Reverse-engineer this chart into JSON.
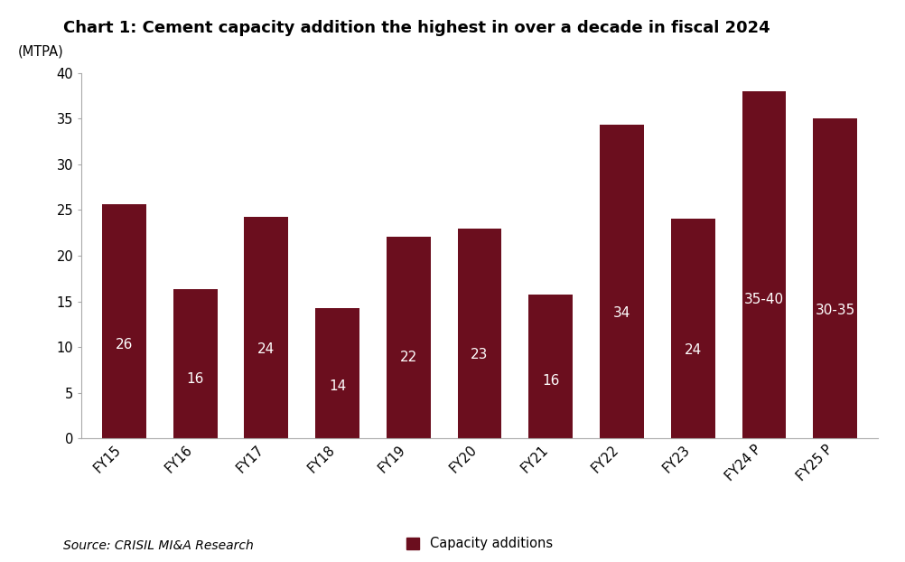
{
  "title": "Chart 1: Cement capacity addition the highest in over a decade in fiscal 2024",
  "ylabel_text": "(MTPA)",
  "categories": [
    "FY15",
    "FY16",
    "FY17",
    "FY18",
    "FY19",
    "FY20",
    "FY21",
    "FY22",
    "FY23",
    "FY24 P",
    "FY25 P"
  ],
  "values": [
    25.6,
    16.3,
    24.3,
    14.3,
    22.1,
    23.0,
    15.7,
    34.3,
    24.1,
    38.0,
    35.0
  ],
  "bar_labels": [
    "26",
    "16",
    "24",
    "14",
    "22",
    "23",
    "16",
    "34",
    "24",
    "35-40",
    "30-35"
  ],
  "bar_color": "#6B0E1E",
  "label_color": "#FFFFFF",
  "background_color": "#FFFFFF",
  "ylim": [
    0,
    40
  ],
  "yticks": [
    0,
    5,
    10,
    15,
    20,
    25,
    30,
    35,
    40
  ],
  "legend_label": "Capacity additions",
  "source_text": "Source: CRISIL MI&A Research",
  "title_fontsize": 13,
  "bar_label_fontsize": 11,
  "tick_fontsize": 10.5,
  "source_fontsize": 10,
  "ylabel_fontsize": 10.5
}
